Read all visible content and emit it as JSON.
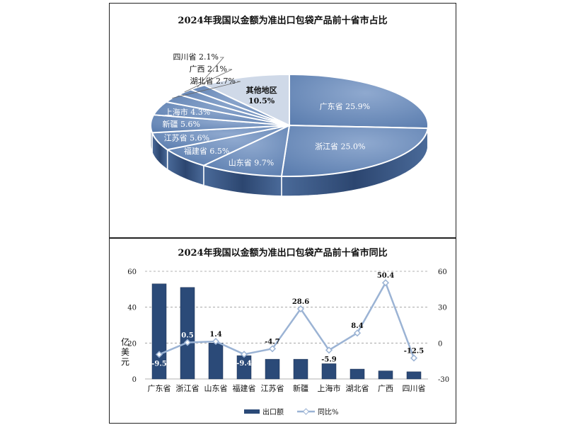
{
  "chart_data": [
    {
      "type": "pie",
      "title": "2024年我国以金额为准出口包袋产品前十省市占比",
      "slices": [
        {
          "label": "广东省",
          "value": 25.9,
          "display": "广东省 25.9%"
        },
        {
          "label": "浙江省",
          "value": 25.0,
          "display": "浙江省 25.0%"
        },
        {
          "label": "山东省",
          "value": 9.7,
          "display": "山东省 9.7%"
        },
        {
          "label": "福建省",
          "value": 6.5,
          "display": "福建省 6.5%"
        },
        {
          "label": "江苏省",
          "value": 5.6,
          "display": "江苏省 5.6%"
        },
        {
          "label": "新疆",
          "value": 5.6,
          "display": "新疆 5.6%"
        },
        {
          "label": "上海市",
          "value": 4.3,
          "display": "上海市 4.3%"
        },
        {
          "label": "湖北省",
          "value": 2.7,
          "display": "湖北省 2.7%"
        },
        {
          "label": "广西",
          "value": 2.1,
          "display": "广西 2.1%"
        },
        {
          "label": "四川省",
          "value": 2.1,
          "display": "四川省 2.1%"
        },
        {
          "label": "其他地区",
          "value": 10.5,
          "display": "其他地区 10.5%"
        }
      ],
      "colors": {
        "top": "#5d7fb0",
        "side": "#2c4670",
        "edge": "#ffffff",
        "other": "#cfd9e8"
      }
    },
    {
      "type": "bar",
      "title": "2024年我国以金额为准出口包袋产品前十省市同比",
      "categories": [
        "广东省",
        "浙江省",
        "山东省",
        "福建省",
        "江苏省",
        "新疆",
        "上海市",
        "湖北省",
        "广西",
        "四川省"
      ],
      "ylabel": "亿美元",
      "ylim": [
        0,
        60
      ],
      "yticks": [
        0,
        20,
        40,
        60
      ],
      "y2lim": [
        -30,
        60
      ],
      "y2ticks": [
        -30,
        0,
        30,
        60
      ],
      "series": [
        {
          "name": "出口额",
          "type": "bar",
          "color": "#2b4a78",
          "values": [
            53,
            51,
            20,
            13,
            11,
            11,
            8.5,
            5.5,
            4.5,
            4
          ]
        },
        {
          "name": "同比%",
          "type": "line",
          "axis": "right",
          "color": "#9bb3d4",
          "values": [
            -9.5,
            0.5,
            1.4,
            -9.4,
            -4.7,
            28.6,
            -5.9,
            8.4,
            50.4,
            -12.5
          ],
          "labels": [
            "-9.5",
            "0.5",
            "1.4",
            "-9.4",
            "-4.7",
            "28.6",
            "-5.9",
            "8.4",
            "50.4",
            "-12.5"
          ]
        }
      ],
      "grid": true,
      "legend": "bottom"
    }
  ]
}
